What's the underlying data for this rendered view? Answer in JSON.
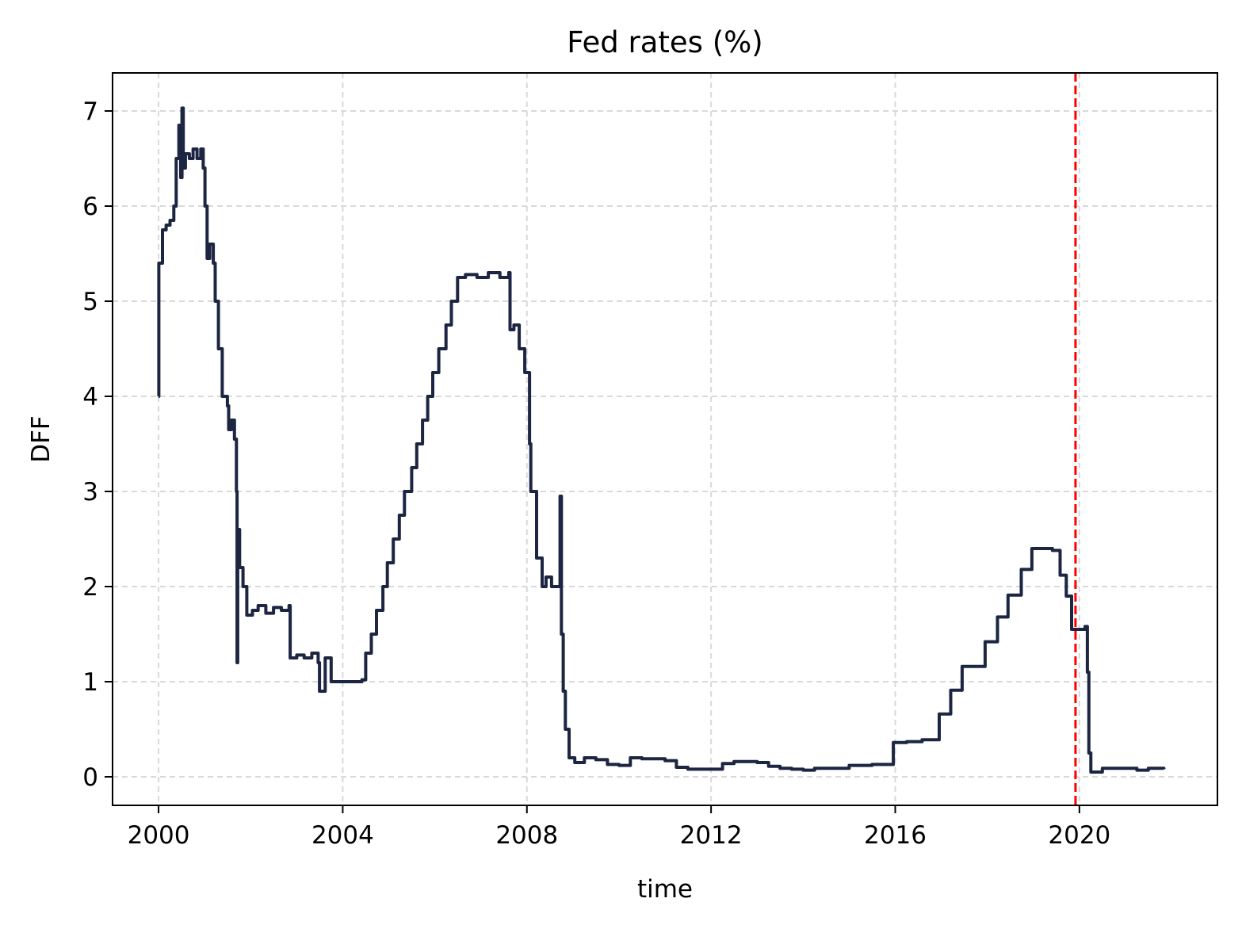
{
  "chart_data": {
    "type": "line",
    "title": "Fed rates (%)",
    "xlabel": "time",
    "ylabel": "DFF",
    "xlim": [
      "1999-01-01",
      "2022-12-31"
    ],
    "ylim": [
      -0.3,
      7.4
    ],
    "x_ticks": [
      "2000",
      "2004",
      "2008",
      "2012",
      "2016",
      "2020"
    ],
    "y_ticks": [
      "0",
      "1",
      "2",
      "3",
      "4",
      "5",
      "6",
      "7"
    ],
    "grid": true,
    "grid_style": "dashed",
    "series": [
      {
        "color": "#1c2541",
        "points": [
          [
            "2000-01-01",
            4.0
          ],
          [
            "2000-01-03",
            5.4
          ],
          [
            "2000-02-01",
            5.75
          ],
          [
            "2000-03-01",
            5.8
          ],
          [
            "2000-04-01",
            5.85
          ],
          [
            "2000-05-01",
            6.0
          ],
          [
            "2000-05-20",
            6.5
          ],
          [
            "2000-06-10",
            6.85
          ],
          [
            "2000-06-25",
            6.3
          ],
          [
            "2000-07-05",
            7.03
          ],
          [
            "2000-07-15",
            6.4
          ],
          [
            "2000-08-01",
            6.55
          ],
          [
            "2000-09-01",
            6.5
          ],
          [
            "2000-10-01",
            6.6
          ],
          [
            "2000-11-01",
            6.5
          ],
          [
            "2000-12-01",
            6.6
          ],
          [
            "2000-12-20",
            6.4
          ],
          [
            "2001-01-03",
            6.0
          ],
          [
            "2001-01-20",
            5.45
          ],
          [
            "2001-02-10",
            5.6
          ],
          [
            "2001-03-10",
            5.4
          ],
          [
            "2001-03-25",
            5.0
          ],
          [
            "2001-04-20",
            4.5
          ],
          [
            "2001-05-20",
            4.0
          ],
          [
            "2001-06-30",
            3.9
          ],
          [
            "2001-07-10",
            3.65
          ],
          [
            "2001-08-01",
            3.75
          ],
          [
            "2001-08-25",
            3.55
          ],
          [
            "2001-09-10",
            3.0
          ],
          [
            "2001-09-15",
            1.2
          ],
          [
            "2001-09-20",
            2.6
          ],
          [
            "2001-10-05",
            2.2
          ],
          [
            "2001-11-01",
            2.0
          ],
          [
            "2001-12-01",
            1.7
          ],
          [
            "2002-01-15",
            1.75
          ],
          [
            "2002-03-01",
            1.8
          ],
          [
            "2002-05-01",
            1.72
          ],
          [
            "2002-07-01",
            1.78
          ],
          [
            "2002-09-01",
            1.75
          ],
          [
            "2002-11-01",
            1.8
          ],
          [
            "2002-11-10",
            1.25
          ],
          [
            "2003-01-01",
            1.28
          ],
          [
            "2003-03-01",
            1.25
          ],
          [
            "2003-05-01",
            1.3
          ],
          [
            "2003-06-20",
            1.2
          ],
          [
            "2003-07-01",
            0.9
          ],
          [
            "2003-08-15",
            1.25
          ],
          [
            "2003-10-01",
            1.0
          ],
          [
            "2003-12-01",
            1.0
          ],
          [
            "2004-02-01",
            1.0
          ],
          [
            "2004-04-01",
            1.0
          ],
          [
            "2004-06-01",
            1.02
          ],
          [
            "2004-07-01",
            1.3
          ],
          [
            "2004-08-15",
            1.5
          ],
          [
            "2004-09-25",
            1.75
          ],
          [
            "2004-11-15",
            2.0
          ],
          [
            "2004-12-20",
            2.25
          ],
          [
            "2005-02-05",
            2.5
          ],
          [
            "2005-03-25",
            2.75
          ],
          [
            "2005-05-05",
            3.0
          ],
          [
            "2005-07-01",
            3.25
          ],
          [
            "2005-08-10",
            3.5
          ],
          [
            "2005-09-25",
            3.75
          ],
          [
            "2005-11-05",
            4.0
          ],
          [
            "2005-12-15",
            4.25
          ],
          [
            "2006-02-01",
            4.5
          ],
          [
            "2006-03-30",
            4.75
          ],
          [
            "2006-05-12",
            5.0
          ],
          [
            "2006-06-30",
            5.25
          ],
          [
            "2006-09-01",
            5.28
          ],
          [
            "2006-12-01",
            5.25
          ],
          [
            "2007-03-01",
            5.3
          ],
          [
            "2007-06-01",
            5.25
          ],
          [
            "2007-08-10",
            5.3
          ],
          [
            "2007-08-20",
            4.7
          ],
          [
            "2007-09-20",
            4.75
          ],
          [
            "2007-11-01",
            4.5
          ],
          [
            "2007-12-15",
            4.25
          ],
          [
            "2008-01-22",
            3.5
          ],
          [
            "2008-02-01",
            3.0
          ],
          [
            "2008-03-18",
            2.3
          ],
          [
            "2008-05-01",
            2.0
          ],
          [
            "2008-06-01",
            2.1
          ],
          [
            "2008-07-15",
            2.0
          ],
          [
            "2008-09-15",
            2.0
          ],
          [
            "2008-09-20",
            2.95
          ],
          [
            "2008-10-01",
            1.5
          ],
          [
            "2008-10-15",
            0.9
          ],
          [
            "2008-11-01",
            0.5
          ],
          [
            "2008-12-01",
            0.2
          ],
          [
            "2009-01-15",
            0.15
          ],
          [
            "2009-04-01",
            0.2
          ],
          [
            "2009-07-01",
            0.18
          ],
          [
            "2009-10-01",
            0.13
          ],
          [
            "2010-01-01",
            0.12
          ],
          [
            "2010-04-01",
            0.2
          ],
          [
            "2010-07-01",
            0.19
          ],
          [
            "2010-10-01",
            0.19
          ],
          [
            "2011-01-01",
            0.17
          ],
          [
            "2011-04-01",
            0.1
          ],
          [
            "2011-07-01",
            0.08
          ],
          [
            "2011-10-01",
            0.08
          ],
          [
            "2012-01-01",
            0.08
          ],
          [
            "2012-04-01",
            0.14
          ],
          [
            "2012-07-01",
            0.16
          ],
          [
            "2012-10-01",
            0.16
          ],
          [
            "2013-01-01",
            0.15
          ],
          [
            "2013-04-01",
            0.11
          ],
          [
            "2013-07-01",
            0.09
          ],
          [
            "2013-10-01",
            0.08
          ],
          [
            "2014-01-01",
            0.07
          ],
          [
            "2014-04-01",
            0.09
          ],
          [
            "2014-07-01",
            0.09
          ],
          [
            "2014-10-01",
            0.09
          ],
          [
            "2015-01-01",
            0.12
          ],
          [
            "2015-04-01",
            0.12
          ],
          [
            "2015-07-01",
            0.13
          ],
          [
            "2015-10-01",
            0.13
          ],
          [
            "2015-12-17",
            0.36
          ],
          [
            "2016-04-01",
            0.37
          ],
          [
            "2016-08-01",
            0.39
          ],
          [
            "2016-12-15",
            0.66
          ],
          [
            "2017-03-16",
            0.91
          ],
          [
            "2017-06-15",
            1.16
          ],
          [
            "2017-12-14",
            1.42
          ],
          [
            "2018-03-22",
            1.68
          ],
          [
            "2018-06-14",
            1.91
          ],
          [
            "2018-09-27",
            2.18
          ],
          [
            "2018-12-20",
            2.4
          ],
          [
            "2019-03-01",
            2.4
          ],
          [
            "2019-06-01",
            2.38
          ],
          [
            "2019-08-01",
            2.12
          ],
          [
            "2019-09-19",
            1.9
          ],
          [
            "2019-10-31",
            1.55
          ],
          [
            "2020-01-01",
            1.55
          ],
          [
            "2020-02-15",
            1.58
          ],
          [
            "2020-03-04",
            1.1
          ],
          [
            "2020-03-16",
            0.25
          ],
          [
            "2020-04-01",
            0.05
          ],
          [
            "2020-07-01",
            0.09
          ],
          [
            "2020-10-01",
            0.09
          ],
          [
            "2021-01-01",
            0.09
          ],
          [
            "2021-04-01",
            0.07
          ],
          [
            "2021-07-01",
            0.09
          ],
          [
            "2021-11-01",
            0.08
          ]
        ]
      }
    ],
    "annotations": [
      {
        "type": "vline",
        "x": "2019-12-01",
        "color": "#ff0000",
        "style": "dashed"
      }
    ]
  }
}
